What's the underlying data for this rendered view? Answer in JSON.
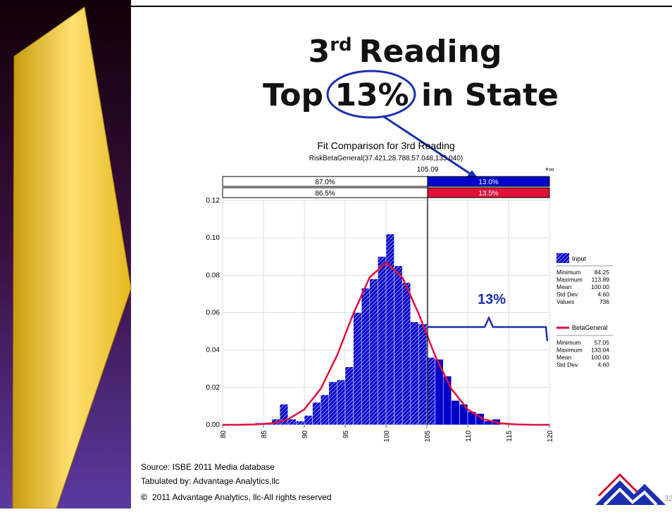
{
  "slide": {
    "title_number": "3",
    "title_suffix": "rd",
    "title_word": "Reading",
    "title2_start": "Top",
    "title2_highlight": "13%",
    "title2_end": "in State",
    "source": "Source: ISBE 2011 Media database",
    "tabulated": "Tabulated by: Advantage Analytics,llc",
    "copyright_symbol": "©",
    "copyright": "2011 Advantage Analytics, llc-All rights reserved",
    "page_number": "32"
  },
  "chart_data": {
    "type": "histogram",
    "title": "Fit Comparison for 3rd Reading",
    "subtitle": "RiskBetaGeneral(37.421,28.788,57.048,133.040)",
    "name": "Input",
    "color": "#0000cc",
    "bins": [
      84,
      85,
      86,
      87,
      88,
      89,
      90,
      91,
      92,
      93,
      94,
      95,
      96,
      97,
      98,
      99,
      100,
      101,
      102,
      103,
      104,
      105,
      106,
      107,
      108,
      109,
      110,
      111,
      112,
      113,
      114
    ],
    "values": [
      0.001,
      0.001,
      0.003,
      0.011,
      0.003,
      0.002,
      0.005,
      0.012,
      0.016,
      0.023,
      0.024,
      0.031,
      0.06,
      0.073,
      0.078,
      0.09,
      0.102,
      0.085,
      0.076,
      0.055,
      0.054,
      0.036,
      0.035,
      0.026,
      0.013,
      0.011,
      0.007,
      0.006,
      0.002,
      0.003
    ],
    "curve": {
      "name": "BetaGeneral",
      "color": "#e0103a",
      "x": [
        80,
        82,
        84,
        86,
        88,
        90,
        92,
        94,
        96,
        98,
        100,
        102,
        104,
        106,
        108,
        110,
        112,
        114,
        116,
        118,
        120
      ],
      "y": [
        0,
        0,
        0.0002,
        0.0008,
        0.0029,
        0.0082,
        0.0192,
        0.037,
        0.0594,
        0.0789,
        0.0867,
        0.0789,
        0.0594,
        0.037,
        0.0192,
        0.0082,
        0.0029,
        0.0008,
        0.0002,
        0,
        0
      ]
    },
    "xlim": [
      80,
      120
    ],
    "xticks": [
      80,
      85,
      90,
      95,
      100,
      105,
      110,
      115,
      120
    ],
    "ylim": [
      0,
      0.12
    ],
    "yticks": [
      {
        "value": 0,
        "label": "0.00"
      },
      {
        "value": 0.02,
        "label": "0.02"
      },
      {
        "value": 0.04,
        "label": "0.04"
      },
      {
        "value": 0.06,
        "label": "0.06"
      },
      {
        "value": 0.08,
        "label": "0.08"
      },
      {
        "value": 0.1,
        "label": "0.10"
      },
      {
        "value": 0.12,
        "label": "0.12"
      }
    ],
    "grid": true,
    "delimiter": {
      "value": 105.09,
      "right_label": "+∞",
      "input_left": "87.0%",
      "input_right": "13.0%",
      "fit_left": "86.5%",
      "fit_right": "13.5%"
    },
    "annotation": "13%",
    "legend_input_stats": [
      [
        "Minimum",
        "84.25"
      ],
      [
        "Maximum",
        "113.89"
      ],
      [
        "Mean",
        "100.00"
      ],
      [
        "Std Dev",
        "4.60"
      ],
      [
        "Values",
        "736"
      ]
    ],
    "legend_fit_stats": [
      [
        "Minimum",
        "57.05"
      ],
      [
        "Maximum",
        "133.04"
      ],
      [
        "Mean",
        "100.00"
      ],
      [
        "Std Dev",
        "4.60"
      ]
    ]
  }
}
